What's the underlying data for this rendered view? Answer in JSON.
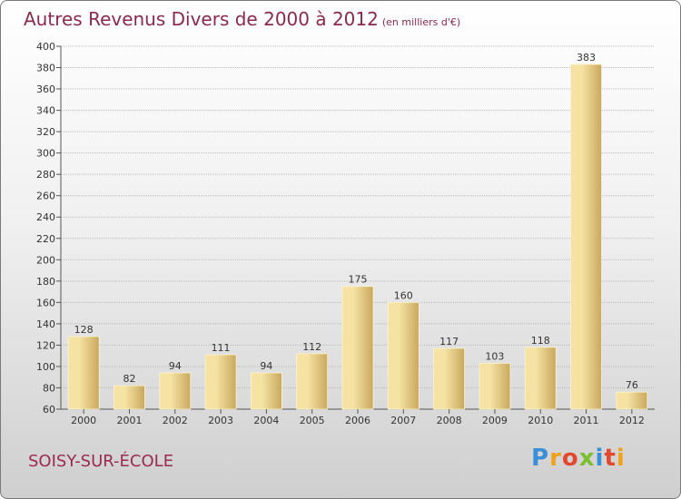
{
  "header": {
    "title": "Autres Revenus Divers de 2000 à 2012",
    "subtitle": "(en milliers d'€)"
  },
  "footer": {
    "city": "SOISY-SUR-ÉCOLE",
    "logo": "Proxiti",
    "logo_letters": [
      {
        "char": "P",
        "color": "#3a8fd9"
      },
      {
        "char": "r",
        "color": "#f0a21a"
      },
      {
        "char": "o",
        "color": "#e0492f"
      },
      {
        "char": "x",
        "color": "#7cbf2e"
      },
      {
        "char": "i",
        "color": "#3a8fd9"
      },
      {
        "char": "t",
        "color": "#e0492f"
      },
      {
        "char": "i",
        "color": "#f0a21a"
      }
    ]
  },
  "colors": {
    "bar_light": "#f6e3a4",
    "bar_dark": "#c9a85e",
    "title": "#8a2a4a",
    "grid": "#bbbbbb"
  },
  "chart_data": {
    "type": "bar",
    "title": "Autres Revenus Divers de 2000 à 2012",
    "subtitle": "(en milliers d'€)",
    "categories": [
      "2000",
      "2001",
      "2002",
      "2003",
      "2004",
      "2005",
      "2006",
      "2007",
      "2008",
      "2009",
      "2010",
      "2011",
      "2012"
    ],
    "values": [
      128,
      82,
      94,
      111,
      94,
      112,
      175,
      160,
      117,
      103,
      118,
      383,
      76
    ],
    "ylim": [
      60,
      400
    ],
    "yticks": [
      60,
      80,
      100,
      120,
      140,
      160,
      180,
      200,
      220,
      240,
      260,
      280,
      300,
      320,
      340,
      360,
      380,
      400
    ],
    "grid": true,
    "xlabel": "",
    "ylabel": ""
  }
}
